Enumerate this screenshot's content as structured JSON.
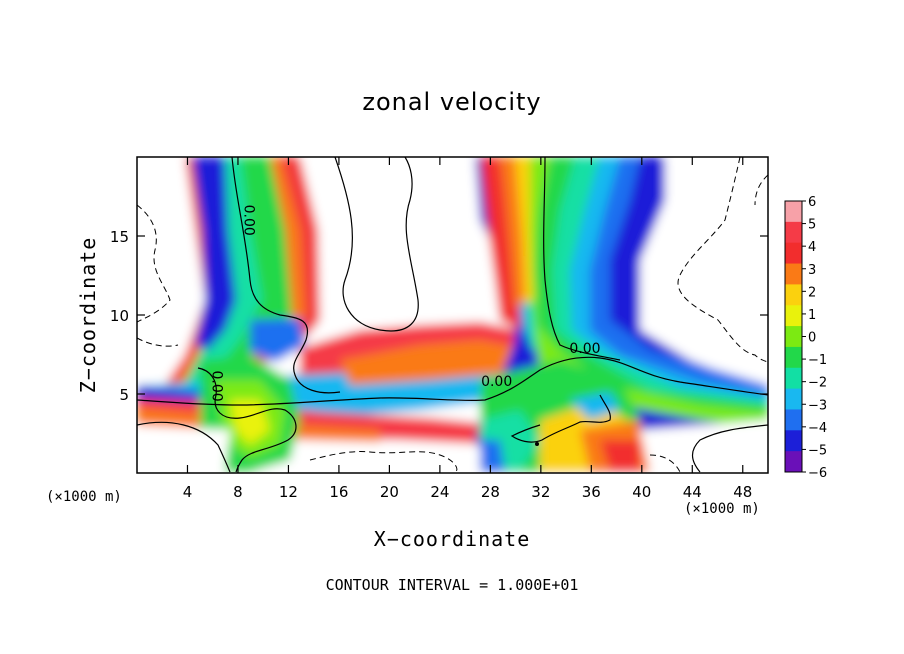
{
  "chart_data": {
    "type": "heatmap",
    "title": "zonal velocity",
    "xlabel": "X−coordinate",
    "ylabel": "Z−coordinate",
    "x_unit": "(×1000 m)",
    "footnote": "CONTOUR INTERVAL = 1.000E+01",
    "xlim": [
      0,
      50
    ],
    "ylim": [
      0,
      20
    ],
    "x_ticks": [
      4,
      8,
      12,
      16,
      20,
      24,
      28,
      32,
      36,
      40,
      44,
      48
    ],
    "y_ticks": [
      5,
      10,
      15
    ],
    "colorbar": {
      "ticks": [
        6,
        5,
        4,
        3,
        2,
        1,
        0,
        -1,
        -2,
        -3,
        -4,
        -5,
        -6
      ],
      "tick_labels": [
        "6",
        "5",
        "4",
        "3",
        "2",
        "1",
        "0",
        "−1",
        "−2",
        "−3",
        "−4",
        "−5",
        "−6"
      ],
      "colors": [
        "#f7a1a8",
        "#f53b47",
        "#f22d2d",
        "#fa7a16",
        "#fbd10e",
        "#e9f20c",
        "#7cea12",
        "#22d84a",
        "#12dfa4",
        "#19b8f0",
        "#1f6ff0",
        "#1c1fd8",
        "#6a10b8"
      ]
    },
    "contour_labels": [
      {
        "text": "0.00",
        "x": 8.5,
        "y": 16
      },
      {
        "text": "0.00",
        "x": 35.5,
        "y": 7.6
      },
      {
        "text": "0.00",
        "x": 28.5,
        "y": 5.5
      },
      {
        "text": "0.00",
        "x": 6,
        "y": 5.5
      }
    ]
  },
  "colors": {
    "frame": "#000000",
    "background": "#ffffff"
  }
}
